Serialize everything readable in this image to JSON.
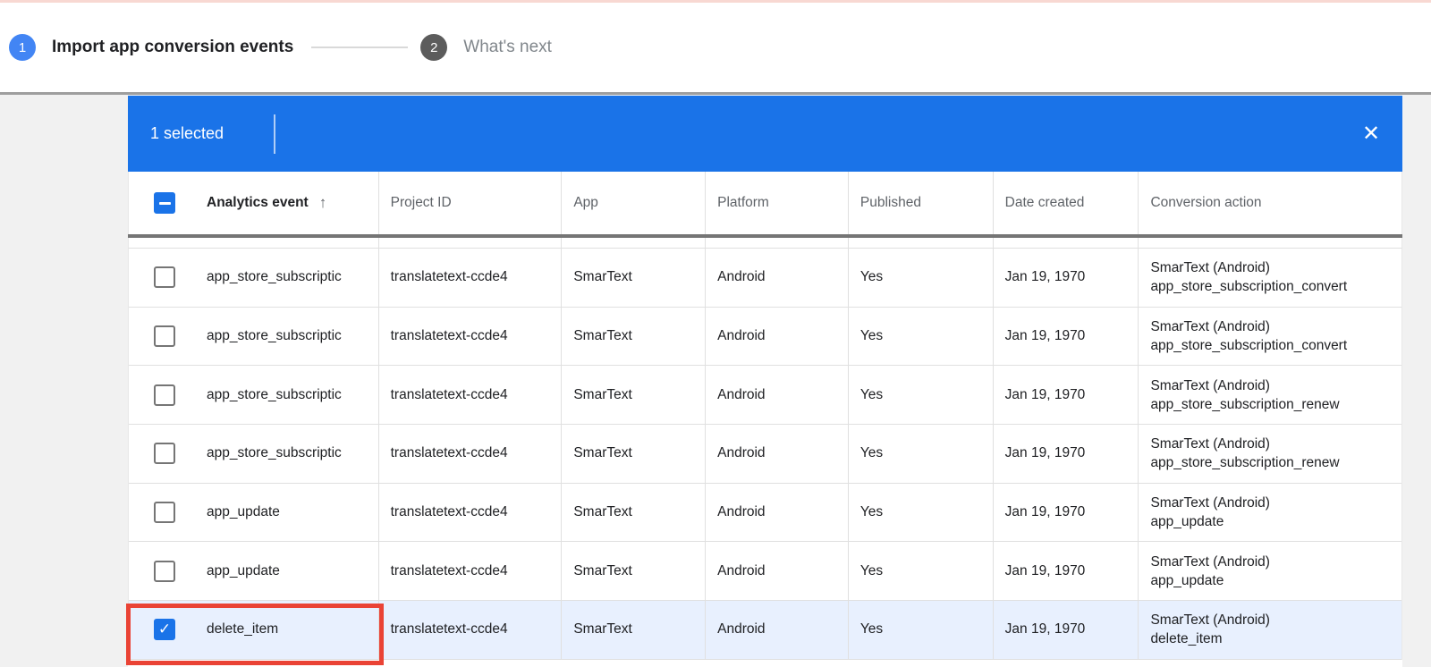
{
  "stepper": {
    "step1": {
      "number": "1",
      "label": "Import app conversion events"
    },
    "step2": {
      "number": "2",
      "label": "What's next"
    }
  },
  "selection_bar": {
    "text": "1 selected",
    "close_icon": "✕"
  },
  "table": {
    "columns": [
      "Analytics event",
      "Project ID",
      "App",
      "Platform",
      "Published",
      "Date created",
      "Conversion action"
    ],
    "sort": {
      "column": "Analytics event",
      "direction": "ascending",
      "arrow": "↑"
    },
    "rows": [
      {
        "checked": false,
        "highlighted": false,
        "event": "app_store_subscriptic",
        "project_id": "translatetext-ccde4",
        "app": "SmarText",
        "platform": "Android",
        "published": "Yes",
        "date_created": "Jan 19, 1970",
        "conversion_action_line1": "SmarText (Android)",
        "conversion_action_line2": "app_store_subscription_convert"
      },
      {
        "checked": false,
        "highlighted": false,
        "event": "app_store_subscriptic",
        "project_id": "translatetext-ccde4",
        "app": "SmarText",
        "platform": "Android",
        "published": "Yes",
        "date_created": "Jan 19, 1970",
        "conversion_action_line1": "SmarText (Android)",
        "conversion_action_line2": "app_store_subscription_convert"
      },
      {
        "checked": false,
        "highlighted": false,
        "event": "app_store_subscriptic",
        "project_id": "translatetext-ccde4",
        "app": "SmarText",
        "platform": "Android",
        "published": "Yes",
        "date_created": "Jan 19, 1970",
        "conversion_action_line1": "SmarText (Android)",
        "conversion_action_line2": "app_store_subscription_renew"
      },
      {
        "checked": false,
        "highlighted": false,
        "event": "app_store_subscriptic",
        "project_id": "translatetext-ccde4",
        "app": "SmarText",
        "platform": "Android",
        "published": "Yes",
        "date_created": "Jan 19, 1970",
        "conversion_action_line1": "SmarText (Android)",
        "conversion_action_line2": "app_store_subscription_renew"
      },
      {
        "checked": false,
        "highlighted": false,
        "event": "app_update",
        "project_id": "translatetext-ccde4",
        "app": "SmarText",
        "platform": "Android",
        "published": "Yes",
        "date_created": "Jan 19, 1970",
        "conversion_action_line1": "SmarText (Android)",
        "conversion_action_line2": "app_update"
      },
      {
        "checked": false,
        "highlighted": false,
        "event": "app_update",
        "project_id": "translatetext-ccde4",
        "app": "SmarText",
        "platform": "Android",
        "published": "Yes",
        "date_created": "Jan 19, 1970",
        "conversion_action_line1": "SmarText (Android)",
        "conversion_action_line2": "app_update"
      },
      {
        "checked": true,
        "highlighted": true,
        "event": "delete_item",
        "project_id": "translatetext-ccde4",
        "app": "SmarText",
        "platform": "Android",
        "published": "Yes",
        "date_created": "Jan 19, 1970",
        "conversion_action_line1": "SmarText (Android)",
        "conversion_action_line2": "delete_item"
      }
    ]
  },
  "colors": {
    "selection_bar_blue": "#1a73e8",
    "checkbox_blue": "#1a73e8",
    "step_active_blue": "#4285f4",
    "step_upcoming_gray": "#5c5c5c",
    "highlight_row_blue": "#e8f0fe",
    "annotation_red": "#ea4335",
    "header_shadow_gray": "#757575",
    "top_strip_pink": "#f8d8d2"
  }
}
